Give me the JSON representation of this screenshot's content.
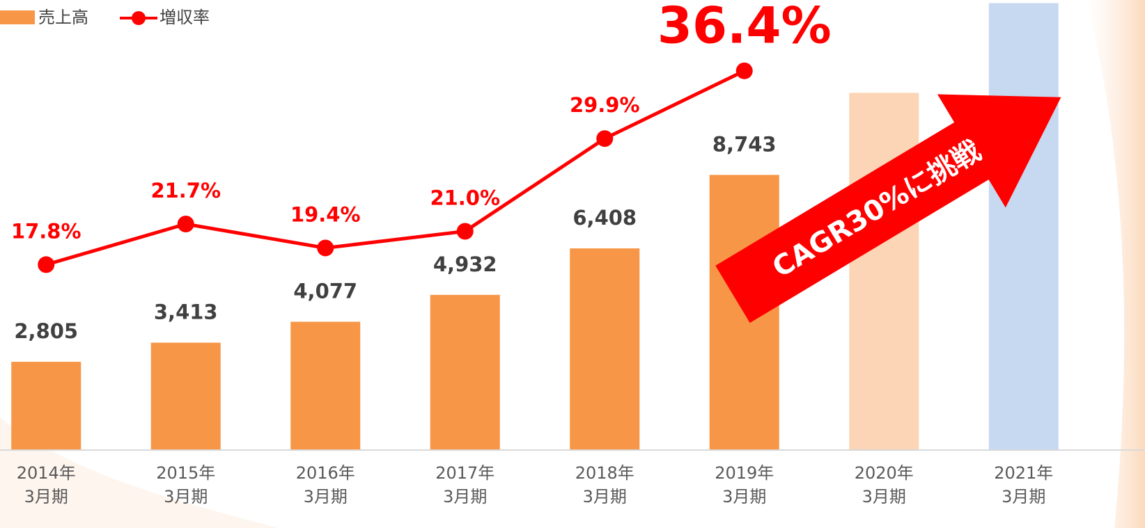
{
  "chart_data": {
    "type": "bar+line",
    "categories": [
      [
        "2014年",
        "3月期"
      ],
      [
        "2015年",
        "3月期"
      ],
      [
        "2016年",
        "3月期"
      ],
      [
        "2017年",
        "3月期"
      ],
      [
        "2018年",
        "3月期"
      ],
      [
        "2019年",
        "3月期"
      ],
      [
        "2020年",
        "3月期"
      ],
      [
        "2021年",
        "3月期"
      ]
    ],
    "series": [
      {
        "name": "売上高",
        "type": "bar",
        "color": "#f79646",
        "colors": [
          "#f79646",
          "#f79646",
          "#f79646",
          "#f79646",
          "#f79646",
          "#f79646",
          "#fbd5b5",
          "#c6d9f1"
        ],
        "values": [
          2805,
          3413,
          4077,
          4932,
          6408,
          8743,
          11350,
          14200
        ],
        "value_labels": [
          "2,805",
          "3,413",
          "4,077",
          "4,932",
          "6,408",
          "8,743",
          null,
          null
        ]
      },
      {
        "name": "増収率",
        "type": "line",
        "axis": "y2",
        "color": "#ff0000",
        "values": [
          17.8,
          21.7,
          19.4,
          21.0,
          29.9,
          36.4,
          null,
          null
        ],
        "value_labels": [
          "17.8%",
          "21.7%",
          "19.4%",
          "21.0%",
          "29.9%",
          "36.4%",
          null,
          null
        ]
      }
    ],
    "ylim": [
      0,
      14300
    ],
    "y2lim": [
      0,
      43.2
    ],
    "annotation": "CAGR30%に挑戦",
    "legend": "top-left"
  }
}
